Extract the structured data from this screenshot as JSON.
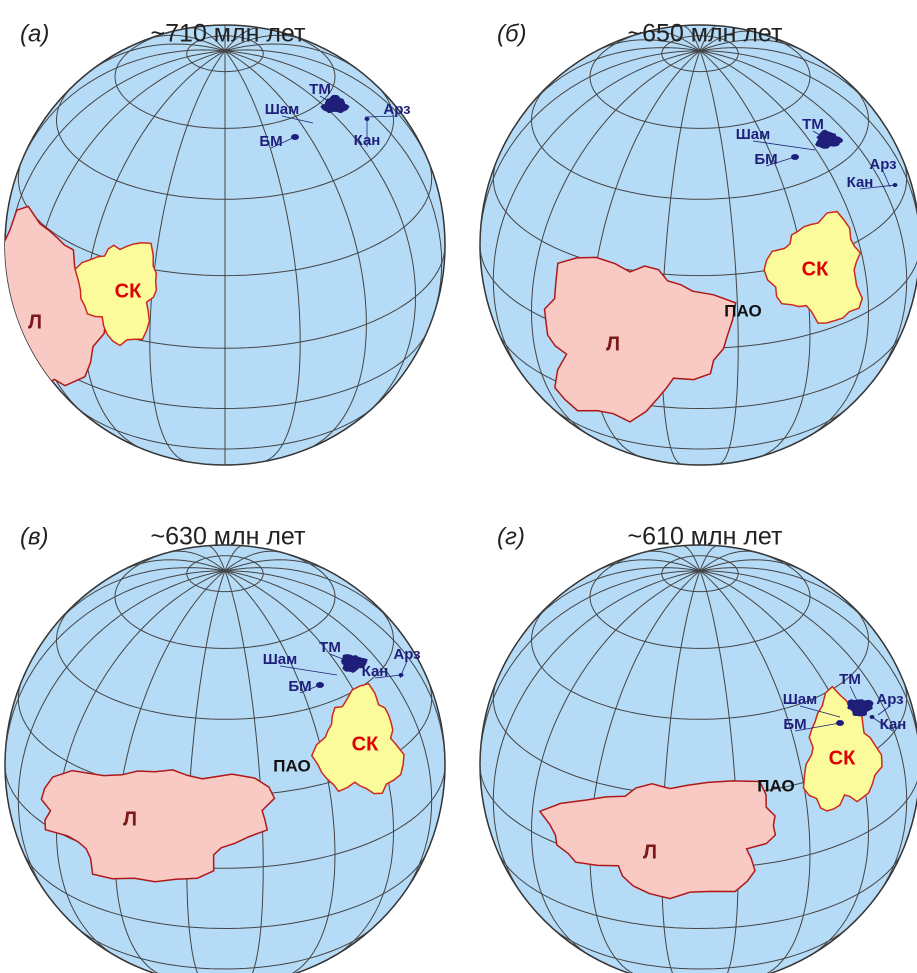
{
  "panels": [
    {
      "letter": "(а)",
      "age": "~710 млн лет",
      "labels": {
        "L": "Л",
        "SK": "СК",
        "TM": "ТМ",
        "Sham": "Шам",
        "BM": "БМ",
        "Arz": "Арз",
        "Kan": "Кан"
      }
    },
    {
      "letter": "(б)",
      "age": "~650 млн лет",
      "labels": {
        "L": "Л",
        "SK": "СК",
        "PAO": "ПАО",
        "TM": "ТМ",
        "Sham": "Шам",
        "BM": "БМ",
        "Arz": "Арз",
        "Kan": "Кан"
      }
    },
    {
      "letter": "(в)",
      "age": "~630 млн лет",
      "labels": {
        "L": "Л",
        "SK": "СК",
        "PAO": "ПАО",
        "TM": "ТМ",
        "Sham": "Шам",
        "BM": "БМ",
        "Arz": "Арз",
        "Kan": "Кан"
      }
    },
    {
      "letter": "(г)",
      "age": "~610 млн лет",
      "labels": {
        "L": "Л",
        "SK": "СК",
        "PAO": "ПАО",
        "TM": "ТМ",
        "Sham": "Шам",
        "BM": "БМ",
        "Arz": "Арз",
        "Kan": "Кан"
      }
    }
  ]
}
